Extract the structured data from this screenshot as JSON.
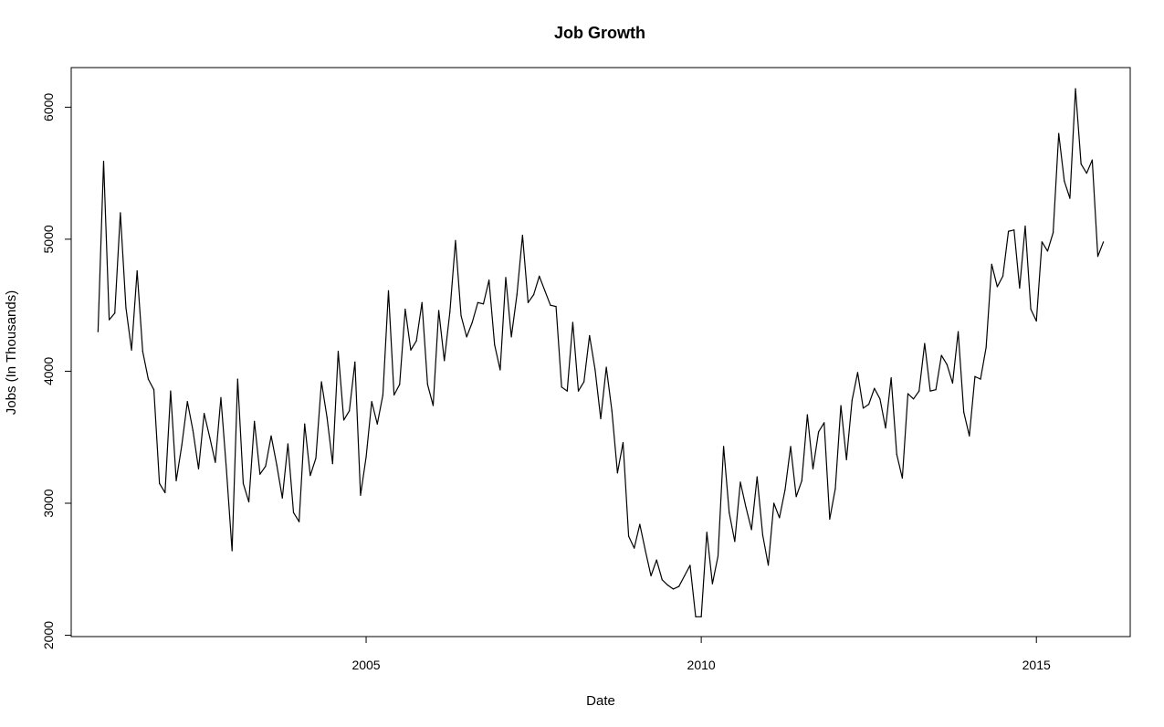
{
  "chart_data": {
    "type": "line",
    "title": "Job Growth",
    "xlabel": "Date",
    "ylabel": "Jobs (In Thousands)",
    "x_unit": "year",
    "x_start": 2001.0,
    "x_step": 0.0833333,
    "xlim": [
      2000.6,
      2016.4
    ],
    "ylim": [
      1990,
      6300
    ],
    "x_ticks": [
      2005,
      2010,
      2015
    ],
    "y_ticks": [
      2000,
      3000,
      4000,
      5000,
      6000
    ],
    "x_tick_labels": [
      "2005",
      "2010",
      "2015"
    ],
    "y_tick_labels": [
      "2000",
      "3000",
      "4000",
      "5000",
      "6000"
    ],
    "grid": false,
    "legend": "none",
    "line_color": "#000000",
    "series": [
      {
        "values": [
          4300,
          5590,
          4390,
          4440,
          5200,
          4480,
          4160,
          4760,
          4150,
          3940,
          3860,
          3150,
          3080,
          3850,
          3170,
          3440,
          3770,
          3550,
          3260,
          3680,
          3500,
          3310,
          3800,
          3250,
          2640,
          3940,
          3150,
          3010,
          3620,
          3220,
          3280,
          3510,
          3290,
          3040,
          3450,
          2930,
          2860,
          3600,
          3210,
          3340,
          3920,
          3650,
          3300,
          4150,
          3630,
          3700,
          4070,
          3060,
          3350,
          3770,
          3600,
          3820,
          4610,
          3820,
          3900,
          4470,
          4160,
          4230,
          4520,
          3900,
          3740,
          4460,
          4080,
          4450,
          4990,
          4420,
          4260,
          4370,
          4520,
          4510,
          4690,
          4200,
          4010,
          4710,
          4260,
          4580,
          5030,
          4520,
          4580,
          4720,
          4610,
          4500,
          4490,
          3880,
          3850,
          4370,
          3850,
          3920,
          4270,
          4010,
          3640,
          4030,
          3700,
          3230,
          3460,
          2750,
          2660,
          2840,
          2640,
          2450,
          2570,
          2420,
          2380,
          2350,
          2370,
          2450,
          2530,
          2140,
          2140,
          2780,
          2390,
          2600,
          3430,
          2930,
          2710,
          3160,
          2970,
          2800,
          3200,
          2760,
          2530,
          3000,
          2890,
          3100,
          3430,
          3050,
          3170,
          3670,
          3260,
          3540,
          3610,
          2880,
          3110,
          3740,
          3330,
          3780,
          3990,
          3720,
          3750,
          3870,
          3790,
          3570,
          3950,
          3370,
          3190,
          3830,
          3790,
          3850,
          4210,
          3850,
          3860,
          4120,
          4050,
          3910,
          4300,
          3690,
          3510,
          3960,
          3940,
          4180,
          4810,
          4640,
          4720,
          5060,
          5070,
          4630,
          5100,
          4470,
          4380,
          4980,
          4910,
          5050,
          5800,
          5440,
          5310,
          6140,
          5570,
          5500,
          5600,
          4870,
          4980
        ]
      }
    ]
  }
}
